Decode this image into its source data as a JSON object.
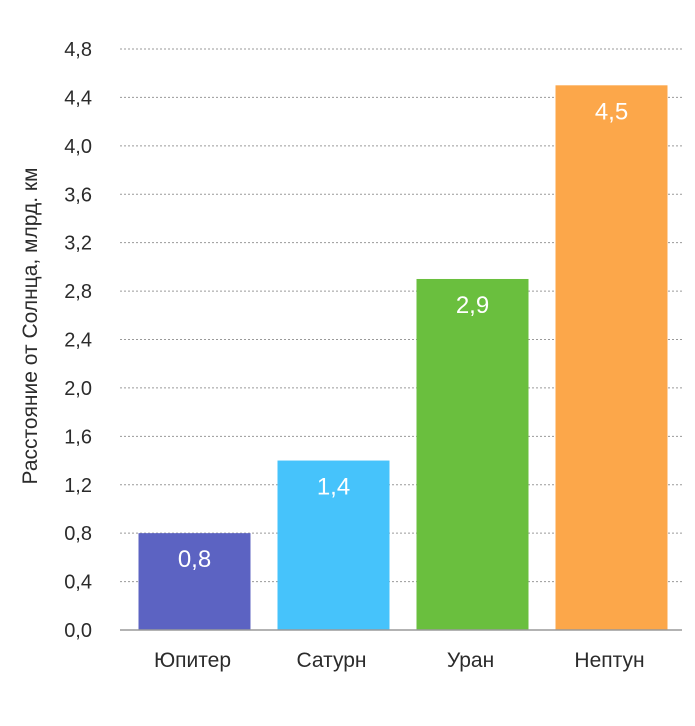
{
  "chart_data": {
    "type": "bar",
    "categories": [
      "Юпитер",
      "Сатурн",
      "Уран",
      "Нептун"
    ],
    "values": [
      0.8,
      1.4,
      2.9,
      4.5
    ],
    "value_labels": [
      "0,8",
      "1,4",
      "2,9",
      "4,5"
    ],
    "colors": [
      "#5c63c2",
      "#46c3fb",
      "#6abf3e",
      "#fca74a"
    ],
    "ylabel": "Расстояние от Солнца, млрд. км",
    "xlabel": "",
    "ylim": [
      0,
      4.8
    ],
    "yticks": [
      0,
      0.4,
      0.8,
      1.2,
      1.6,
      2.0,
      2.4,
      2.8,
      3.2,
      3.6,
      4.0,
      4.4,
      4.8
    ],
    "ytick_labels": [
      "0,0",
      "0,4",
      "0,8",
      "1,2",
      "1,6",
      "2,0",
      "2,4",
      "2,8",
      "3,2",
      "3,6",
      "4,0",
      "4,4",
      "4,8"
    ],
    "grid": true,
    "legend": "none"
  }
}
